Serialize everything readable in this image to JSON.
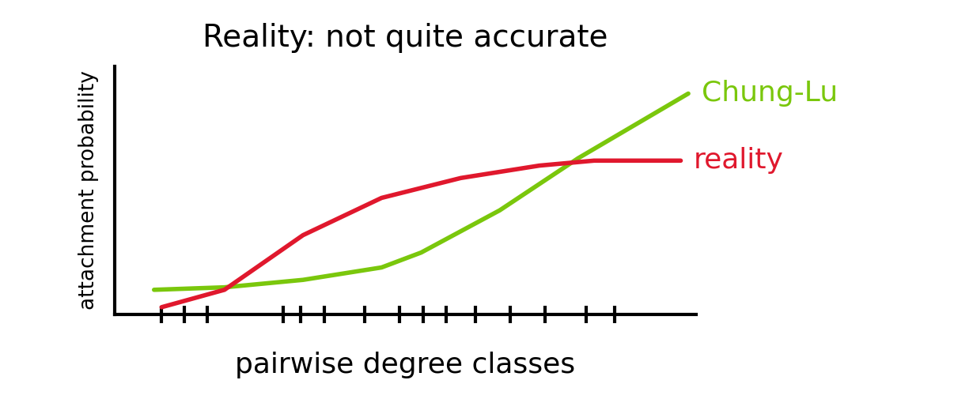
{
  "chart_data": {
    "type": "line",
    "title": "Reality: not quite accurate",
    "x_label": "pairwise degree classes",
    "y_label": "attachment probability",
    "tick_labels": false,
    "grid": false,
    "xlim": [
      0,
      10
    ],
    "ylim": [
      0,
      1
    ],
    "xticks": [
      0.8,
      1.2,
      1.6,
      2.9,
      3.2,
      3.6,
      4.3,
      4.9,
      5.3,
      5.7,
      6.2,
      6.8,
      7.4,
      8.1,
      8.6
    ],
    "yticks": [],
    "series": [
      {
        "name": "Chung-Lu",
        "color": "#7ac70c",
        "line_style": "solid",
        "x": [
          0.68,
          1.89,
          3.24,
          4.59,
          5.27,
          6.62,
          7.97,
          9.86
        ],
        "values": [
          0.1,
          0.11,
          0.14,
          0.19,
          0.25,
          0.42,
          0.63,
          0.89
        ]
      },
      {
        "name": "reality",
        "color": "#e0182d",
        "line_style": "solid",
        "x": [
          0.81,
          1.89,
          3.24,
          4.59,
          5.95,
          7.3,
          8.24,
          9.73
        ],
        "values": [
          0.03,
          0.1,
          0.32,
          0.47,
          0.55,
          0.6,
          0.62,
          0.62
        ]
      }
    ]
  }
}
